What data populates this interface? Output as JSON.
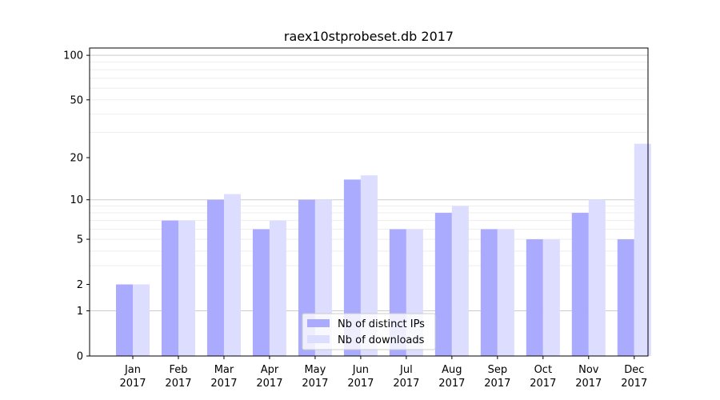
{
  "chart_data": {
    "type": "bar",
    "title": "raex10stprobeset.db 2017",
    "xlabel": "",
    "ylabel": "",
    "y_scale": "log(1+y)",
    "ylim": [
      0,
      112
    ],
    "y_ticks": [
      0,
      1,
      2,
      5,
      10,
      20,
      50,
      100
    ],
    "grid": "horizontal",
    "legend_position": "bottom-center",
    "categories": [
      "Jan\n2017",
      "Feb\n2017",
      "Mar\n2017",
      "Apr\n2017",
      "May\n2017",
      "Jun\n2017",
      "Jul\n2017",
      "Aug\n2017",
      "Sep\n2017",
      "Oct\n2017",
      "Nov\n2017",
      "Dec\n2017"
    ],
    "series": [
      {
        "name": "Nb of distinct IPs",
        "color": "#aaaaff",
        "values": [
          2,
          7,
          10,
          6,
          10,
          14,
          6,
          8,
          6,
          5,
          8,
          5
        ]
      },
      {
        "name": "Nb of downloads",
        "color": "#ddddff",
        "values": [
          2,
          7,
          11,
          7,
          10,
          15,
          6,
          9,
          6,
          5,
          10,
          25
        ]
      }
    ]
  }
}
